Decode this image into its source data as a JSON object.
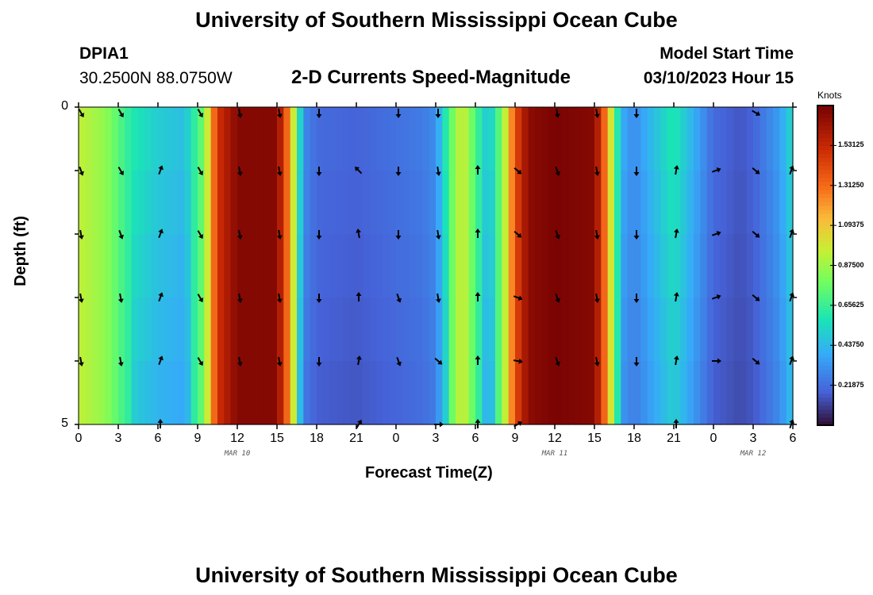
{
  "page": {
    "title": "University of Southern Mississippi Ocean Cube",
    "title_repeat": "University of Southern Mississippi Ocean Cube",
    "station": "DPIA1",
    "coords": "30.2500N  88.0750W",
    "chart_name": "2-D Currents Speed-Magnitude",
    "model_start_label": "Model Start Time",
    "model_start_value": "03/10/2023 Hour 15"
  },
  "chart_data": {
    "type": "heatmap",
    "title": "2-D Currents Speed-Magnitude",
    "xlabel": "Forecast Time(Z)",
    "ylabel": "Depth (ft)",
    "x_ticks": [
      "0",
      "3",
      "6",
      "9",
      "12",
      "15",
      "18",
      "21",
      "0",
      "3",
      "6",
      "9",
      "12",
      "15",
      "18",
      "21",
      "0",
      "3",
      "6"
    ],
    "x_hours": [
      0,
      54
    ],
    "y_ticks": [
      "0",
      "5"
    ],
    "ylim": [
      0,
      5
    ],
    "day_labels": [
      {
        "label": "MAR 10",
        "hour": 12
      },
      {
        "label": "MAR 11",
        "hour": 36
      },
      {
        "label": "MAR 12",
        "hour": 51
      }
    ],
    "depth_rows": 5,
    "colorbar": {
      "label": "Knots",
      "ticks": [
        "0.21875",
        "0.43750",
        "0.65625",
        "0.87500",
        "1.09375",
        "1.31250",
        "1.53125"
      ],
      "tick_values": [
        0.21875,
        0.4375,
        0.65625,
        0.875,
        1.09375,
        1.3125,
        1.53125
      ],
      "vmin": 0.0,
      "vmax": 1.75
    },
    "speed_profile": {
      "hours": [
        0,
        2,
        4,
        6,
        8,
        9.5,
        10.5,
        12,
        15,
        16,
        17,
        18,
        21,
        24,
        26,
        27,
        28,
        29,
        30,
        31,
        32,
        33,
        34,
        36,
        39,
        40,
        41,
        42,
        45,
        48,
        50,
        51,
        53,
        54
      ],
      "speed": [
        0.95,
        0.85,
        0.6,
        0.5,
        0.45,
        0.8,
        1.5,
        1.72,
        1.72,
        1.2,
        0.3,
        0.2,
        0.18,
        0.22,
        0.25,
        0.3,
        0.7,
        1.0,
        0.7,
        0.45,
        0.8,
        1.4,
        1.7,
        1.75,
        1.72,
        1.2,
        0.4,
        0.3,
        0.6,
        0.2,
        0.15,
        0.18,
        0.35,
        0.55
      ]
    },
    "vector_rows": [
      {
        "depth": 0,
        "hours": [
          0,
          3,
          9,
          12,
          15,
          18,
          24,
          27,
          36,
          39,
          42,
          51
        ],
        "angles": [
          150,
          150,
          150,
          170,
          170,
          180,
          180,
          180,
          170,
          170,
          180,
          120
        ]
      },
      {
        "depth": 1,
        "hours": [
          0,
          3,
          6,
          9,
          12,
          15,
          18,
          21,
          24,
          27,
          30,
          33,
          36,
          39,
          42,
          45,
          48,
          51,
          54
        ],
        "angles": [
          160,
          150,
          20,
          150,
          170,
          170,
          180,
          -45,
          180,
          170,
          0,
          130,
          160,
          170,
          180,
          10,
          70,
          130,
          20
        ]
      },
      {
        "depth": 2,
        "hours": [
          0,
          3,
          6,
          9,
          12,
          15,
          18,
          21,
          24,
          27,
          30,
          33,
          36,
          39,
          42,
          45,
          48,
          51,
          54
        ],
        "angles": [
          170,
          160,
          20,
          150,
          170,
          170,
          180,
          -10,
          180,
          170,
          0,
          130,
          160,
          170,
          180,
          10,
          70,
          130,
          20
        ]
      },
      {
        "depth": 3,
        "hours": [
          0,
          3,
          6,
          9,
          12,
          15,
          18,
          21,
          24,
          27,
          30,
          33,
          36,
          39,
          42,
          45,
          48,
          51,
          54
        ],
        "angles": [
          170,
          170,
          20,
          150,
          170,
          170,
          180,
          0,
          160,
          170,
          0,
          110,
          160,
          170,
          180,
          10,
          70,
          130,
          20
        ]
      },
      {
        "depth": 4,
        "hours": [
          0,
          3,
          6,
          9,
          12,
          15,
          18,
          21,
          24,
          27,
          30,
          33,
          36,
          39,
          42,
          45,
          48,
          51,
          54
        ],
        "angles": [
          170,
          170,
          20,
          150,
          170,
          170,
          180,
          10,
          160,
          130,
          0,
          100,
          160,
          170,
          180,
          10,
          90,
          130,
          20
        ]
      },
      {
        "depth": 5,
        "hours": [
          6,
          21,
          27,
          30,
          33,
          45,
          54
        ],
        "angles": [
          0,
          30,
          90,
          0,
          60,
          0,
          20
        ]
      }
    ]
  }
}
